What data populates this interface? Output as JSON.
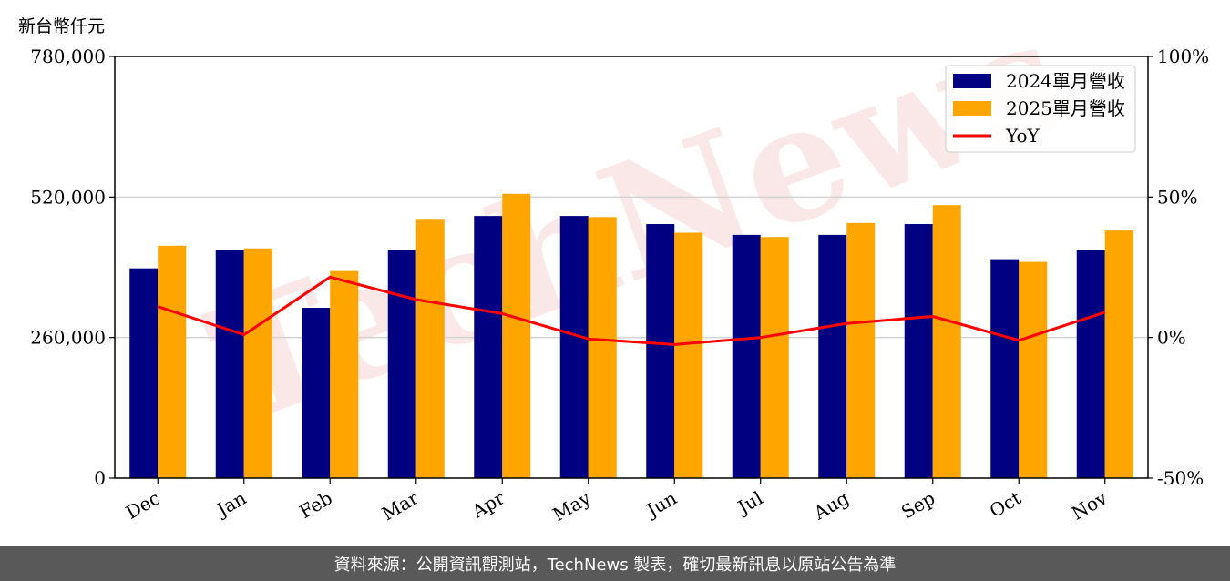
{
  "unit_label": "新台幣仟元",
  "watermark": "TechNews",
  "footer": "資料來源：公開資訊觀測站，TechNews 製表，確切最新訊息以原站公告為準",
  "chart_data": {
    "type": "bar",
    "categories": [
      "Dec",
      "Jan",
      "Feb",
      "Mar",
      "Apr",
      "May",
      "Jun",
      "Jul",
      "Aug",
      "Sep",
      "Oct",
      "Nov"
    ],
    "series": [
      {
        "name": "2024單月營收",
        "type": "bar",
        "axis": "left",
        "color": "#000080",
        "values": [
          388000,
          422000,
          315000,
          422000,
          485000,
          485000,
          470000,
          450000,
          450000,
          470000,
          405000,
          422000
        ]
      },
      {
        "name": "2025單月營收",
        "type": "bar",
        "axis": "left",
        "color": "#FFA500",
        "values": [
          430000,
          425000,
          383000,
          478000,
          526000,
          483000,
          454000,
          446000,
          472000,
          505000,
          400000,
          458000
        ]
      },
      {
        "name": "YoY",
        "type": "line",
        "axis": "right",
        "color": "#FF0000",
        "values": [
          11,
          1,
          21.5,
          13.5,
          8.5,
          -0.5,
          -2.5,
          0,
          5,
          7.5,
          -1,
          9
        ]
      }
    ],
    "y_left": {
      "min": 0,
      "max": 780000,
      "ticks": [
        "0",
        "260,000",
        "520,000",
        "780,000"
      ],
      "tick_values": [
        0,
        260000,
        520000,
        780000
      ]
    },
    "y_right": {
      "min": -50,
      "max": 100,
      "ticks": [
        "-50%",
        "0%",
        "50%",
        "100%"
      ],
      "tick_values": [
        -50,
        0,
        50,
        100
      ]
    },
    "grid": "horizontal",
    "legend_position": "top-right"
  }
}
